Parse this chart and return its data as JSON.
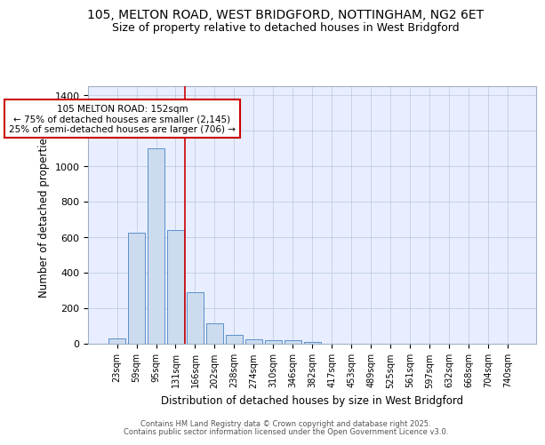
{
  "title_line1": "105, MELTON ROAD, WEST BRIDGFORD, NOTTINGHAM, NG2 6ET",
  "title_line2": "Size of property relative to detached houses in West Bridgford",
  "xlabel": "Distribution of detached houses by size in West Bridgford",
  "ylabel": "Number of detached properties",
  "categories": [
    "23sqm",
    "59sqm",
    "95sqm",
    "131sqm",
    "166sqm",
    "202sqm",
    "238sqm",
    "274sqm",
    "310sqm",
    "346sqm",
    "382sqm",
    "417sqm",
    "453sqm",
    "489sqm",
    "525sqm",
    "561sqm",
    "597sqm",
    "632sqm",
    "668sqm",
    "704sqm",
    "740sqm"
  ],
  "values": [
    30,
    625,
    1100,
    640,
    290,
    115,
    50,
    25,
    20,
    20,
    10,
    0,
    0,
    0,
    0,
    0,
    0,
    0,
    0,
    0,
    0
  ],
  "bar_color": "#ccdcee",
  "bar_edge_color": "#5b8fc9",
  "redline_x": 3.5,
  "annotation_text": "105 MELTON ROAD: 152sqm\n← 75% of detached houses are smaller (2,145)\n25% of semi-detached houses are larger (706) →",
  "annotation_box_color": "#ffffff",
  "annotation_box_edge": "#cc0000",
  "redline_color": "#cc0000",
  "ylim": [
    0,
    1450
  ],
  "yticks": [
    0,
    200,
    400,
    600,
    800,
    1000,
    1200,
    1400
  ],
  "bg_color": "#e8eeff",
  "footer1": "Contains HM Land Registry data © Crown copyright and database right 2025.",
  "footer2": "Contains public sector information licensed under the Open Government Licence v3.0.",
  "title_fontsize": 10,
  "subtitle_fontsize": 9
}
